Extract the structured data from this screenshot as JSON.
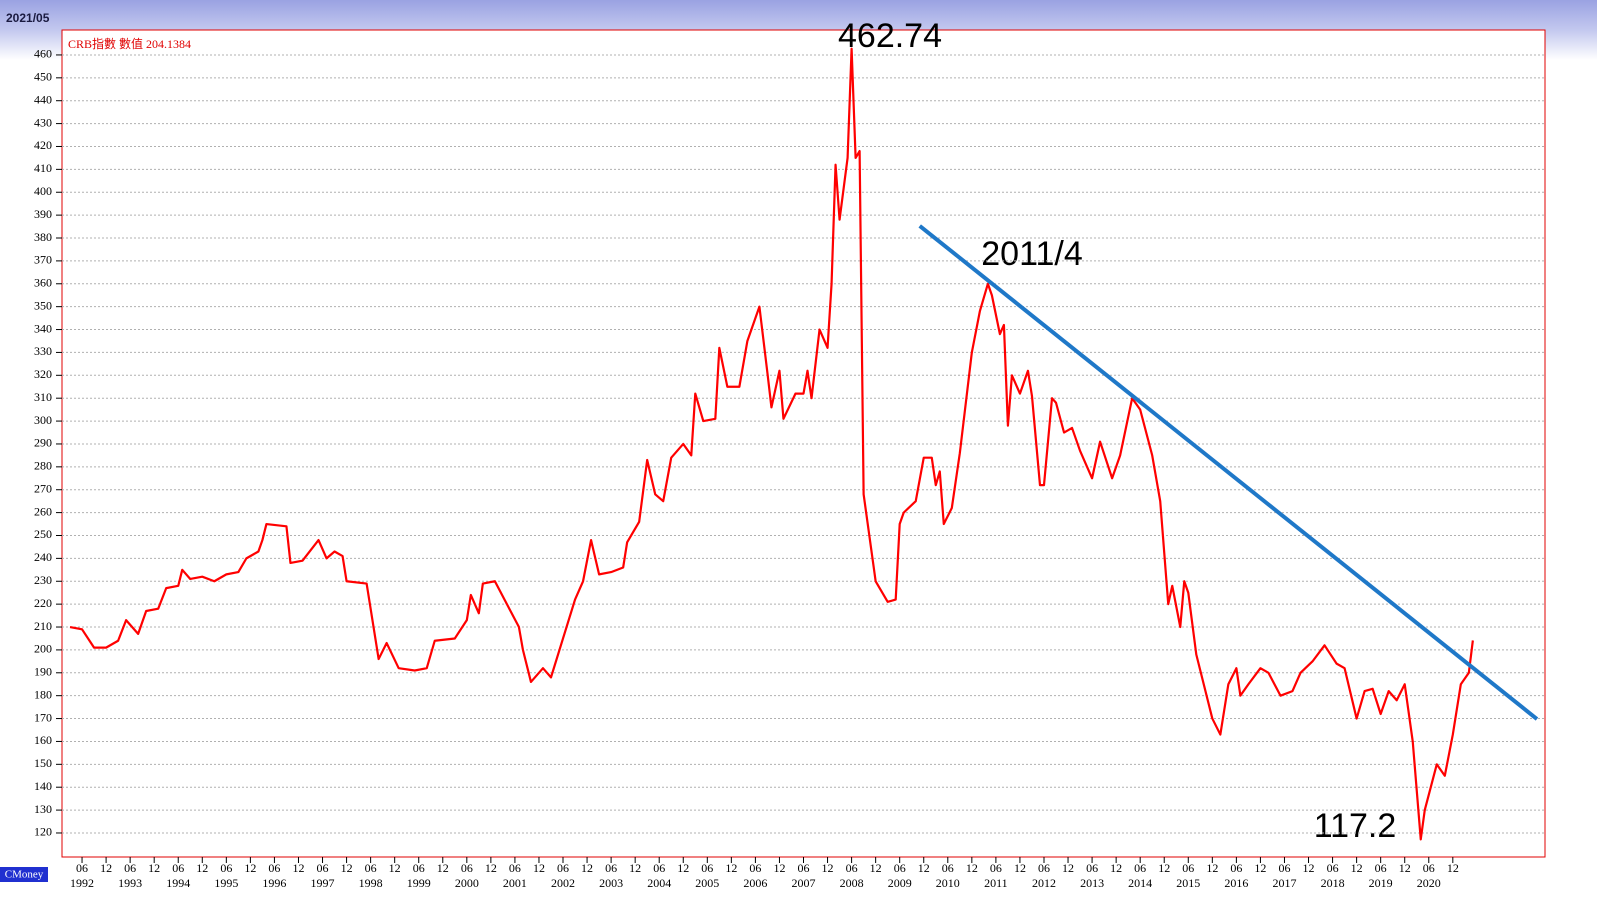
{
  "chart_data": {
    "type": "line",
    "date_label": "2021/05",
    "source": "CMoney",
    "series": [
      {
        "name": "CRB指數 數值 204.1384",
        "color": "#ff0000",
        "values": [
          210,
          209,
          201,
          201,
          204,
          213,
          207,
          217,
          218,
          227,
          228,
          235,
          231,
          232,
          230,
          233,
          234,
          240,
          243,
          248,
          255,
          254,
          238,
          239,
          248,
          240,
          243,
          241,
          230,
          229,
          196,
          203,
          192,
          191,
          192,
          204,
          205,
          213,
          224,
          216,
          229,
          230,
          220,
          210,
          200,
          186,
          192,
          188,
          205,
          222,
          230,
          248,
          233,
          234,
          236,
          247,
          256,
          283,
          268,
          265,
          284,
          290,
          285,
          312,
          300,
          301,
          332,
          315,
          315,
          335,
          350,
          321,
          306,
          322,
          301,
          312,
          312,
          322,
          310,
          340,
          332,
          360,
          412,
          388,
          415,
          462.74,
          415,
          418,
          268,
          230,
          221,
          222,
          255,
          260,
          265,
          284,
          284,
          272,
          278,
          255,
          262,
          286,
          330,
          348,
          360,
          355,
          338,
          342,
          298,
          320,
          312,
          322,
          311,
          272,
          272,
          310,
          308,
          295,
          297,
          287,
          275,
          291,
          275,
          285,
          310,
          305,
          285,
          265,
          220,
          228,
          210,
          230,
          225,
          198,
          170,
          163,
          185,
          192,
          180,
          185,
          192,
          190,
          180,
          182,
          190,
          195,
          202,
          194,
          192,
          170,
          182,
          183,
          172,
          182,
          178,
          185,
          160,
          117.2,
          130,
          150,
          145,
          163,
          185,
          190,
          204.1384
        ]
      }
    ],
    "x": [
      "1992-03",
      "1992-06",
      "1992-09",
      "1992-12",
      "1993-03",
      "1993-05",
      "1993-08",
      "1993-10",
      "1994-01",
      "1994-03",
      "1994-06",
      "1994-07",
      "1994-09",
      "1994-12",
      "1995-03",
      "1995-06",
      "1995-09",
      "1995-11",
      "1996-02",
      "1996-03",
      "1996-04",
      "1996-09",
      "1996-10",
      "1997-01",
      "1997-05",
      "1997-07",
      "1997-09",
      "1997-11",
      "1997-12",
      "1998-05",
      "1998-08",
      "1998-10",
      "1999-01",
      "1999-05",
      "1999-08",
      "1999-10",
      "2000-03",
      "2000-06",
      "2000-07",
      "2000-09",
      "2000-10",
      "2001-01",
      "2001-04",
      "2001-07",
      "2001-08",
      "2001-10",
      "2002-01",
      "2002-03",
      "2002-06",
      "2002-09",
      "2002-11",
      "2003-01",
      "2003-03",
      "2003-06",
      "2003-09",
      "2003-10",
      "2004-01",
      "2004-03",
      "2004-05",
      "2004-07",
      "2004-09",
      "2004-12",
      "2005-02",
      "2005-03",
      "2005-05",
      "2005-08",
      "2005-09",
      "2005-11",
      "2006-02",
      "2006-04",
      "2006-07",
      "2006-09",
      "2006-10",
      "2006-12",
      "2007-01",
      "2007-04",
      "2007-06",
      "2007-07",
      "2007-08",
      "2007-10",
      "2007-12",
      "2008-01",
      "2008-02",
      "2008-03",
      "2008-05",
      "2008-06",
      "2008-07",
      "2008-08",
      "2008-09",
      "2008-12",
      "2009-03",
      "2009-05",
      "2009-06",
      "2009-07",
      "2009-10",
      "2009-12",
      "2010-02",
      "2010-03",
      "2010-04",
      "2010-05",
      "2010-07",
      "2010-09",
      "2010-12",
      "2011-02",
      "2011-04",
      "2011-05",
      "2011-07",
      "2011-08",
      "2011-09",
      "2011-10",
      "2011-12",
      "2012-02",
      "2012-03",
      "2012-05",
      "2012-06",
      "2012-08",
      "2012-09",
      "2012-11",
      "2013-01",
      "2013-03",
      "2013-06",
      "2013-08",
      "2013-11",
      "2014-01",
      "2014-04",
      "2014-06",
      "2014-09",
      "2014-11",
      "2015-01",
      "2015-02",
      "2015-04",
      "2015-05",
      "2015-06",
      "2015-08",
      "2015-12",
      "2016-02",
      "2016-04",
      "2016-06",
      "2016-07",
      "2016-09",
      "2016-12",
      "2017-02",
      "2017-05",
      "2017-08",
      "2017-10",
      "2018-01",
      "2018-04",
      "2018-07",
      "2018-09",
      "2018-12",
      "2019-02",
      "2019-04",
      "2019-06",
      "2019-08",
      "2019-10",
      "2019-12",
      "2020-02",
      "2020-04",
      "2020-05",
      "2020-08",
      "2020-10",
      "2020-12",
      "2021-02",
      "2021-04",
      "2021-05"
    ],
    "trendline": {
      "x": [
        "2009-11",
        "2022-09"
      ],
      "y": [
        385.3,
        169.8
      ],
      "color": "#1f78c8"
    },
    "annotations": [
      "462.74",
      "2011/4",
      "117.2"
    ],
    "xlim": [
      "1992-01",
      "2022-11"
    ],
    "ylim": [
      109.5,
      470.9
    ],
    "grid": true,
    "yticks": [
      120,
      130,
      140,
      150,
      160,
      170,
      180,
      190,
      200,
      210,
      220,
      230,
      240,
      250,
      260,
      270,
      280,
      290,
      300,
      310,
      320,
      330,
      340,
      350,
      360,
      370,
      380,
      390,
      400,
      410,
      420,
      430,
      440,
      450,
      460
    ],
    "xticks": [
      {
        "value": "1992-06",
        "label": "06"
      },
      {
        "value": "1992-12",
        "label": "12"
      },
      {
        "value": "1993-06",
        "label": "06"
      },
      {
        "value": "1993-12",
        "label": "12"
      },
      {
        "value": "1994-06",
        "label": "06"
      },
      {
        "value": "1994-12",
        "label": "12"
      },
      {
        "value": "1995-06",
        "label": "06"
      },
      {
        "value": "1995-12",
        "label": "12"
      },
      {
        "value": "1996-06",
        "label": "06"
      },
      {
        "value": "1996-12",
        "label": "12"
      },
      {
        "value": "1997-06",
        "label": "06"
      },
      {
        "value": "1997-12",
        "label": "12"
      },
      {
        "value": "1998-06",
        "label": "06"
      },
      {
        "value": "1998-12",
        "label": "12"
      },
      {
        "value": "1999-06",
        "label": "06"
      },
      {
        "value": "1999-12",
        "label": "12"
      },
      {
        "value": "2000-06",
        "label": "06"
      },
      {
        "value": "2000-12",
        "label": "12"
      },
      {
        "value": "2001-06",
        "label": "06"
      },
      {
        "value": "2001-12",
        "label": "12"
      },
      {
        "value": "2002-06",
        "label": "06"
      },
      {
        "value": "2002-12",
        "label": "12"
      },
      {
        "value": "2003-06",
        "label": "06"
      },
      {
        "value": "2003-12",
        "label": "12"
      },
      {
        "value": "2004-06",
        "label": "06"
      },
      {
        "value": "2004-12",
        "label": "12"
      },
      {
        "value": "2005-06",
        "label": "06"
      },
      {
        "value": "2005-12",
        "label": "12"
      },
      {
        "value": "2006-06",
        "label": "06"
      },
      {
        "value": "2006-12",
        "label": "12"
      },
      {
        "value": "2007-06",
        "label": "06"
      },
      {
        "value": "2007-12",
        "label": "12"
      },
      {
        "value": "2008-06",
        "label": "06"
      },
      {
        "value": "2008-12",
        "label": "12"
      },
      {
        "value": "2009-06",
        "label": "06"
      },
      {
        "value": "2009-12",
        "label": "12"
      },
      {
        "value": "2010-06",
        "label": "06"
      },
      {
        "value": "2010-12",
        "label": "12"
      },
      {
        "value": "2011-06",
        "label": "06"
      },
      {
        "value": "2011-12",
        "label": "12"
      },
      {
        "value": "2012-06",
        "label": "06"
      },
      {
        "value": "2012-12",
        "label": "12"
      },
      {
        "value": "2013-06",
        "label": "06"
      },
      {
        "value": "2013-12",
        "label": "12"
      },
      {
        "value": "2014-06",
        "label": "06"
      },
      {
        "value": "2014-12",
        "label": "12"
      },
      {
        "value": "2015-06",
        "label": "06"
      },
      {
        "value": "2015-12",
        "label": "12"
      },
      {
        "value": "2016-06",
        "label": "06"
      },
      {
        "value": "2016-12",
        "label": "12"
      },
      {
        "value": "2017-06",
        "label": "06"
      },
      {
        "value": "2017-12",
        "label": "12"
      },
      {
        "value": "2018-06",
        "label": "06"
      },
      {
        "value": "2018-12",
        "label": "12"
      },
      {
        "value": "2019-06",
        "label": "06"
      },
      {
        "value": "2019-12",
        "label": "12"
      },
      {
        "value": "2020-06",
        "label": "06"
      },
      {
        "value": "2020-12",
        "label": "12"
      }
    ],
    "year_ticks": [
      {
        "value": "1992-06",
        "label": "1992"
      },
      {
        "value": "1993-06",
        "label": "1993"
      },
      {
        "value": "1994-06",
        "label": "1994"
      },
      {
        "value": "1995-06",
        "label": "1995"
      },
      {
        "value": "1996-06",
        "label": "1996"
      },
      {
        "value": "1997-06",
        "label": "1997"
      },
      {
        "value": "1998-06",
        "label": "1998"
      },
      {
        "value": "1999-06",
        "label": "1999"
      },
      {
        "value": "2000-06",
        "label": "2000"
      },
      {
        "value": "2001-06",
        "label": "2001"
      },
      {
        "value": "2002-06",
        "label": "2002"
      },
      {
        "value": "2003-06",
        "label": "2003"
      },
      {
        "value": "2004-06",
        "label": "2004"
      },
      {
        "value": "2005-06",
        "label": "2005"
      },
      {
        "value": "2006-06",
        "label": "2006"
      },
      {
        "value": "2007-06",
        "label": "2007"
      },
      {
        "value": "2008-06",
        "label": "2008"
      },
      {
        "value": "2009-06",
        "label": "2009"
      },
      {
        "value": "2010-06",
        "label": "2010"
      },
      {
        "value": "2011-06",
        "label": "2011"
      },
      {
        "value": "2012-06",
        "label": "2012"
      },
      {
        "value": "2013-06",
        "label": "2013"
      },
      {
        "value": "2014-06",
        "label": "2014"
      },
      {
        "value": "2015-06",
        "label": "2015"
      },
      {
        "value": "2016-06",
        "label": "2016"
      },
      {
        "value": "2017-06",
        "label": "2017"
      },
      {
        "value": "2018-06",
        "label": "2018"
      },
      {
        "value": "2019-06",
        "label": "2019"
      },
      {
        "value": "2020-06",
        "label": "2020"
      }
    ]
  }
}
